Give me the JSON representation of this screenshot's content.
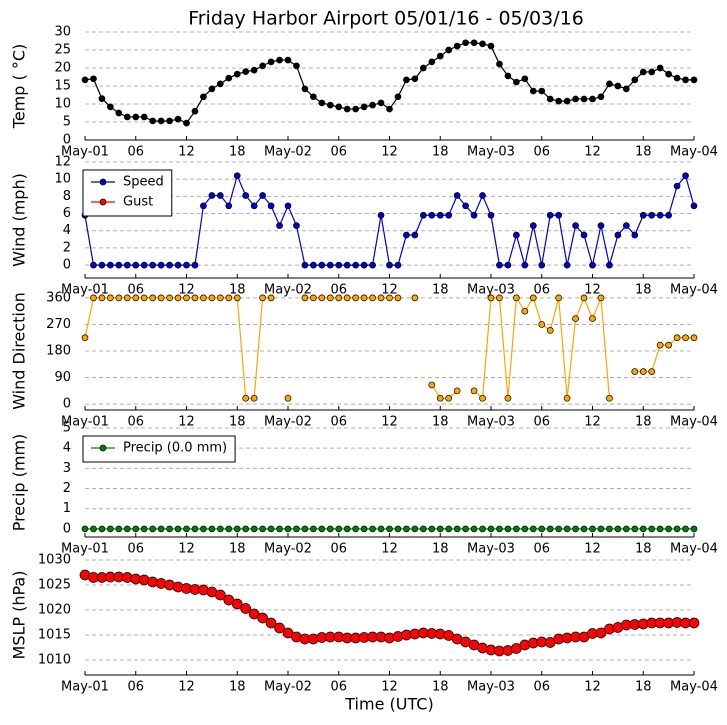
{
  "title": "Friday Harbor Airport 05/01/16 - 05/03/16",
  "chart_data": [
    {
      "type": "line",
      "ylabel": "Temp ( °C)",
      "x": [
        0,
        1,
        2,
        3,
        4,
        5,
        6,
        7,
        8,
        9,
        10,
        11,
        12,
        13,
        14,
        15,
        16,
        17,
        18,
        19,
        20,
        21,
        22,
        23,
        24,
        25,
        26,
        27,
        28,
        29,
        30,
        31,
        32,
        33,
        34,
        35,
        36,
        37,
        38,
        39,
        40,
        41,
        42,
        43,
        44,
        45,
        46,
        47,
        48,
        49,
        50,
        51,
        52,
        53,
        54,
        55,
        56,
        57,
        58,
        59,
        60,
        61,
        62,
        63,
        64,
        65,
        66,
        67,
        68,
        69,
        70,
        71,
        72
      ],
      "xlim": [
        0,
        72
      ],
      "xticks": [
        {
          "value": 0,
          "label": "May-01"
        },
        {
          "value": 6,
          "label": "06"
        },
        {
          "value": 12,
          "label": "12"
        },
        {
          "value": 18,
          "label": "18"
        },
        {
          "value": 24,
          "label": "May-02"
        },
        {
          "value": 30,
          "label": "06"
        },
        {
          "value": 36,
          "label": "12"
        },
        {
          "value": 42,
          "label": "18"
        },
        {
          "value": 48,
          "label": "May-03"
        },
        {
          "value": 54,
          "label": "06"
        },
        {
          "value": 60,
          "label": "12"
        },
        {
          "value": 66,
          "label": "18"
        },
        {
          "value": 72,
          "label": "May-04"
        }
      ],
      "ylim": [
        0,
        30
      ],
      "yticks": [
        0,
        5,
        10,
        15,
        20,
        25,
        30
      ],
      "grid": true,
      "series": [
        {
          "color": "#000000",
          "values": [
            16.7,
            17,
            11.5,
            9.2,
            7.5,
            6.4,
            6.4,
            6.4,
            5.3,
            5.3,
            5.3,
            5.8,
            4.7,
            8,
            12,
            14.2,
            15.6,
            17.2,
            18.3,
            19,
            19.4,
            20.6,
            21.7,
            22.2,
            22.2,
            20.6,
            14.2,
            12,
            10.3,
            9.7,
            9.2,
            8.6,
            8.6,
            9.2,
            9.7,
            10.3,
            8.6,
            12,
            16.7,
            17,
            20,
            21.7,
            23.3,
            25,
            26.1,
            27,
            27,
            26.7,
            26.1,
            21.1,
            17.8,
            16.1,
            17,
            13.6,
            13.6,
            11.4,
            10.8,
            10.8,
            11.4,
            11.4,
            11.4,
            12,
            15.6,
            15,
            14.2,
            16.7,
            18.9,
            18.9,
            20,
            18.3,
            17.2,
            16.7,
            16.7
          ]
        }
      ]
    },
    {
      "type": "line",
      "ylabel": "Wind (mph)",
      "x": [
        0,
        1,
        2,
        3,
        4,
        5,
        6,
        7,
        8,
        9,
        10,
        11,
        12,
        13,
        14,
        15,
        16,
        17,
        18,
        19,
        20,
        21,
        22,
        23,
        24,
        25,
        26,
        27,
        28,
        29,
        30,
        31,
        32,
        33,
        34,
        35,
        36,
        37,
        38,
        39,
        40,
        41,
        42,
        43,
        44,
        45,
        46,
        47,
        48,
        49,
        50,
        51,
        52,
        53,
        54,
        55,
        56,
        57,
        58,
        59,
        60,
        61,
        62,
        63,
        64,
        65,
        66,
        67,
        68,
        69,
        70,
        71,
        72
      ],
      "xlim": [
        0,
        72
      ],
      "xticks": [
        {
          "value": 0,
          "label": "May-01"
        },
        {
          "value": 6,
          "label": "06"
        },
        {
          "value": 12,
          "label": "12"
        },
        {
          "value": 18,
          "label": "18"
        },
        {
          "value": 24,
          "label": "May-02"
        },
        {
          "value": 30,
          "label": "06"
        },
        {
          "value": 36,
          "label": "12"
        },
        {
          "value": 42,
          "label": "18"
        },
        {
          "value": 48,
          "label": "May-03"
        },
        {
          "value": 54,
          "label": "06"
        },
        {
          "value": 60,
          "label": "12"
        },
        {
          "value": 66,
          "label": "18"
        },
        {
          "value": 72,
          "label": "May-04"
        }
      ],
      "ylim": [
        -1.5,
        12
      ],
      "yticks": [
        0,
        2,
        4,
        6,
        8,
        10,
        12
      ],
      "grid": true,
      "legend": "upper left",
      "series": [
        {
          "name": "Speed",
          "color": "#0000cc",
          "values": [
            5.8,
            0,
            0,
            0,
            0,
            0,
            0,
            0,
            0,
            0,
            0,
            0,
            0,
            0,
            6.9,
            8.1,
            8.1,
            6.9,
            10.4,
            8.1,
            6.9,
            8.1,
            6.9,
            4.6,
            6.9,
            4.6,
            0,
            0,
            0,
            0,
            0,
            0,
            0,
            0,
            0,
            5.8,
            0,
            0,
            3.5,
            3.5,
            5.8,
            5.8,
            5.8,
            5.8,
            8.1,
            6.9,
            5.8,
            8.1,
            5.8,
            0,
            0,
            3.5,
            0,
            4.6,
            0,
            5.8,
            5.8,
            0,
            4.6,
            3.5,
            0,
            4.6,
            0,
            3.5,
            4.6,
            3.5,
            5.8,
            5.8,
            5.8,
            5.8,
            9.2,
            10.4,
            6.9
          ]
        },
        {
          "name": "Gust",
          "color": "#ff0000",
          "values": [
            null,
            null,
            null,
            null,
            null,
            null,
            null,
            null,
            null,
            null,
            null,
            null,
            null,
            null,
            null,
            null,
            null,
            null,
            null,
            null,
            null,
            null,
            null,
            null,
            null,
            null,
            null,
            null,
            null,
            null,
            null,
            null,
            null,
            null,
            null,
            null,
            null,
            null,
            null,
            null,
            null,
            null,
            null,
            null,
            null,
            null,
            null,
            null,
            null,
            null,
            null,
            null,
            null,
            null,
            null,
            null,
            null,
            null,
            null,
            null,
            null,
            null,
            null,
            null,
            null,
            null,
            null,
            null,
            null,
            null,
            null,
            null,
            null
          ]
        }
      ]
    },
    {
      "type": "line",
      "ylabel": "Wind Direction",
      "x": [
        0,
        1,
        2,
        3,
        4,
        5,
        6,
        7,
        8,
        9,
        10,
        11,
        12,
        13,
        14,
        15,
        16,
        17,
        18,
        19,
        20,
        21,
        22,
        23,
        24,
        25,
        26,
        27,
        28,
        29,
        30,
        31,
        32,
        33,
        34,
        35,
        36,
        37,
        38,
        39,
        40,
        41,
        42,
        43,
        44,
        45,
        46,
        47,
        48,
        49,
        50,
        51,
        52,
        53,
        54,
        55,
        56,
        57,
        58,
        59,
        60,
        61,
        62,
        63,
        64,
        65,
        66,
        67,
        68,
        69,
        70,
        71,
        72
      ],
      "xlim": [
        0,
        72
      ],
      "xticks": [
        {
          "value": 0,
          "label": "May-01"
        },
        {
          "value": 6,
          "label": "06"
        },
        {
          "value": 12,
          "label": "12"
        },
        {
          "value": 18,
          "label": "18"
        },
        {
          "value": 24,
          "label": "May-02"
        },
        {
          "value": 30,
          "label": "06"
        },
        {
          "value": 36,
          "label": "12"
        },
        {
          "value": 42,
          "label": "18"
        },
        {
          "value": 48,
          "label": "May-03"
        },
        {
          "value": 54,
          "label": "06"
        },
        {
          "value": 60,
          "label": "12"
        },
        {
          "value": 66,
          "label": "18"
        },
        {
          "value": 72,
          "label": "May-04"
        }
      ],
      "ylim": [
        -20,
        380
      ],
      "yticks": [
        0,
        90,
        180,
        270,
        360
      ],
      "grid": true,
      "series": [
        {
          "color": "#ffa500",
          "values": [
            225,
            360,
            360,
            360,
            360,
            360,
            360,
            360,
            360,
            360,
            360,
            360,
            360,
            360,
            360,
            360,
            360,
            360,
            360,
            20,
            20,
            360,
            360,
            null,
            20,
            null,
            360,
            360,
            360,
            360,
            360,
            360,
            360,
            360,
            360,
            360,
            360,
            360,
            null,
            360,
            null,
            65,
            20,
            20,
            45,
            null,
            45,
            20,
            360,
            360,
            20,
            360,
            315,
            360,
            270,
            250,
            360,
            20,
            290,
            360,
            290,
            360,
            20,
            null,
            null,
            110,
            110,
            110,
            200,
            200,
            225,
            225,
            225
          ]
        }
      ]
    },
    {
      "type": "line",
      "ylabel": "Precip (mm)",
      "x": [
        0,
        1,
        2,
        3,
        4,
        5,
        6,
        7,
        8,
        9,
        10,
        11,
        12,
        13,
        14,
        15,
        16,
        17,
        18,
        19,
        20,
        21,
        22,
        23,
        24,
        25,
        26,
        27,
        28,
        29,
        30,
        31,
        32,
        33,
        34,
        35,
        36,
        37,
        38,
        39,
        40,
        41,
        42,
        43,
        44,
        45,
        46,
        47,
        48,
        49,
        50,
        51,
        52,
        53,
        54,
        55,
        56,
        57,
        58,
        59,
        60,
        61,
        62,
        63,
        64,
        65,
        66,
        67,
        68,
        69,
        70,
        71,
        72
      ],
      "xlim": [
        0,
        72
      ],
      "xticks": [
        {
          "value": 0,
          "label": "May-01"
        },
        {
          "value": 6,
          "label": "06"
        },
        {
          "value": 12,
          "label": "12"
        },
        {
          "value": 18,
          "label": "18"
        },
        {
          "value": 24,
          "label": "May-02"
        },
        {
          "value": 30,
          "label": "06"
        },
        {
          "value": 36,
          "label": "12"
        },
        {
          "value": 42,
          "label": "18"
        },
        {
          "value": 48,
          "label": "May-03"
        },
        {
          "value": 54,
          "label": "06"
        },
        {
          "value": 60,
          "label": "12"
        },
        {
          "value": 66,
          "label": "18"
        },
        {
          "value": 72,
          "label": "May-04"
        }
      ],
      "ylim": [
        -0.4,
        5
      ],
      "yticks": [
        0,
        1,
        2,
        3,
        4,
        5
      ],
      "grid": true,
      "legend": "upper left",
      "series": [
        {
          "name": "Precip (0.0 mm)",
          "color": "#008000",
          "values": [
            0,
            0,
            0,
            0,
            0,
            0,
            0,
            0,
            0,
            0,
            0,
            0,
            0,
            0,
            0,
            0,
            0,
            0,
            0,
            0,
            0,
            0,
            0,
            0,
            0,
            0,
            0,
            0,
            0,
            0,
            0,
            0,
            0,
            0,
            0,
            0,
            0,
            0,
            0,
            0,
            0,
            0,
            0,
            0,
            0,
            0,
            0,
            0,
            0,
            0,
            0,
            0,
            0,
            0,
            0,
            0,
            0,
            0,
            0,
            0,
            0,
            0,
            0,
            0,
            0,
            0,
            0,
            0,
            0,
            0,
            0,
            0,
            0
          ]
        }
      ]
    },
    {
      "type": "scatter",
      "ylabel": "MSLP (hPa)",
      "xlabel": "Time (UTC)",
      "x": [
        0,
        1,
        2,
        3,
        4,
        5,
        6,
        7,
        8,
        9,
        10,
        11,
        12,
        13,
        14,
        15,
        16,
        17,
        18,
        19,
        20,
        21,
        22,
        23,
        24,
        25,
        26,
        27,
        28,
        29,
        30,
        31,
        32,
        33,
        34,
        35,
        36,
        37,
        38,
        39,
        40,
        41,
        42,
        43,
        44,
        45,
        46,
        47,
        48,
        49,
        50,
        51,
        52,
        53,
        54,
        55,
        56,
        57,
        58,
        59,
        60,
        61,
        62,
        63,
        64,
        65,
        66,
        67,
        68,
        69,
        70,
        71,
        72
      ],
      "xlim": [
        0,
        72
      ],
      "xticks": [
        {
          "value": 0,
          "label": "May-01"
        },
        {
          "value": 6,
          "label": "06"
        },
        {
          "value": 12,
          "label": "12"
        },
        {
          "value": 18,
          "label": "18"
        },
        {
          "value": 24,
          "label": "May-02"
        },
        {
          "value": 30,
          "label": "06"
        },
        {
          "value": 36,
          "label": "12"
        },
        {
          "value": 42,
          "label": "18"
        },
        {
          "value": 48,
          "label": "May-03"
        },
        {
          "value": 54,
          "label": "06"
        },
        {
          "value": 60,
          "label": "12"
        },
        {
          "value": 66,
          "label": "18"
        },
        {
          "value": 72,
          "label": "May-04"
        }
      ],
      "ylim": [
        1007,
        1031
      ],
      "yticks": [
        1010,
        1015,
        1020,
        1025,
        1030
      ],
      "grid": true,
      "series": [
        {
          "color": "#ff0000",
          "values": [
            1027,
            1026.5,
            1026.5,
            1026.6,
            1026.6,
            1026.5,
            1026.2,
            1026,
            1025.6,
            1025.3,
            1025,
            1024.6,
            1024.3,
            1024.1,
            1024,
            1023.6,
            1023,
            1022,
            1021.2,
            1020.3,
            1019.2,
            1018.4,
            1017.4,
            1016.4,
            1015.4,
            1014.6,
            1014.2,
            1014.2,
            1014.5,
            1014.6,
            1014.6,
            1014.4,
            1014.4,
            1014.5,
            1014.6,
            1014.6,
            1014.4,
            1014.7,
            1015,
            1015.2,
            1015.4,
            1015.3,
            1015.2,
            1014.9,
            1014.2,
            1013.6,
            1013,
            1012.4,
            1012,
            1011.8,
            1011.9,
            1012.3,
            1013,
            1013.4,
            1013.6,
            1013.5,
            1014.2,
            1014.4,
            1014.6,
            1014.6,
            1015.3,
            1015.4,
            1016.2,
            1016.5,
            1017,
            1017.1,
            1017.2,
            1017.4,
            1017.4,
            1017.4,
            1017.5,
            1017.4,
            1017.4
          ]
        }
      ]
    }
  ]
}
